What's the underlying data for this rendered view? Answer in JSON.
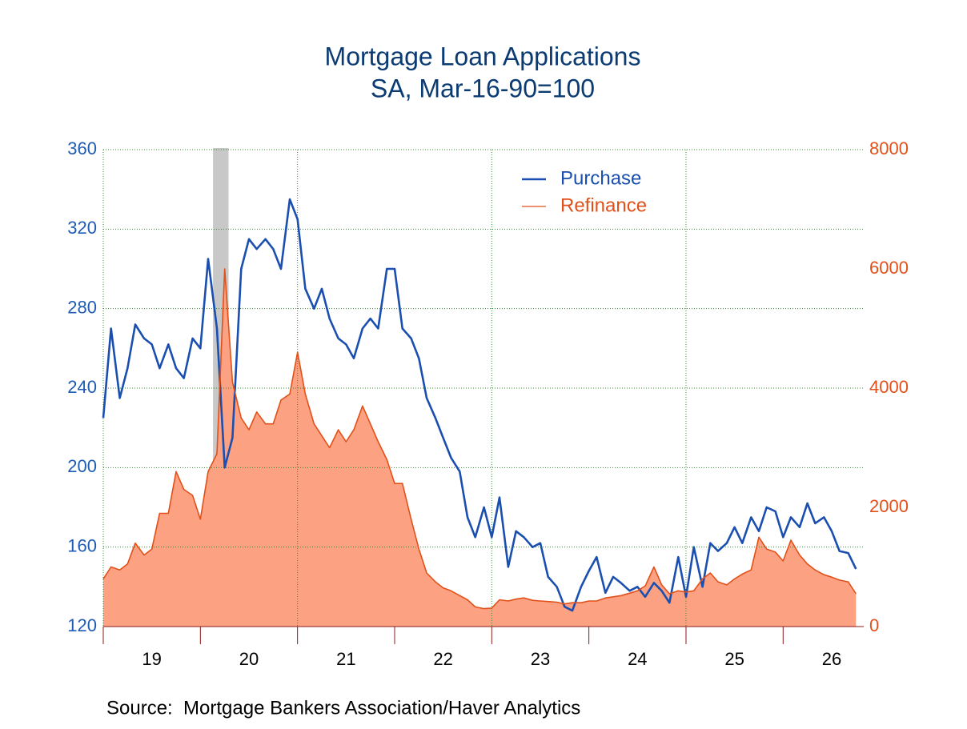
{
  "chart_data": {
    "type": "line",
    "title": "Mortgage Loan Applications",
    "subtitle": "SA, Mar-16-90=100",
    "source": "Source:  Mortgage Bankers Association/Haver Analytics",
    "legend": "top",
    "xlim": [
      2019,
      2026.83
    ],
    "xticks": [
      {
        "value": 2019.5,
        "label": "19"
      },
      {
        "value": 2020.5,
        "label": "20"
      },
      {
        "value": 2021.5,
        "label": "21"
      },
      {
        "value": 2022.5,
        "label": "22"
      },
      {
        "value": 2023.5,
        "label": "23"
      },
      {
        "value": 2024.5,
        "label": "24"
      },
      {
        "value": 2025.5,
        "label": "25"
      },
      {
        "value": 2026.5,
        "label": "26"
      }
    ],
    "xtick_marks": [
      2019,
      2020,
      2021,
      2022,
      2023,
      2024,
      2025,
      2026
    ],
    "xgrid": [
      2021,
      2023,
      2025
    ],
    "ylim": [
      120,
      360
    ],
    "yticks": [
      120,
      160,
      200,
      240,
      280,
      320,
      360
    ],
    "y2lim": [
      0,
      8000
    ],
    "y2ticks": [
      0,
      2000,
      4000,
      6000,
      8000
    ],
    "grid": true,
    "shaded_ranges": [
      {
        "start": 2020.13,
        "end": 2020.29,
        "color": "#c8c8c8"
      }
    ],
    "x": [
      2019.0,
      2019.08,
      2019.17,
      2019.25,
      2019.33,
      2019.42,
      2019.5,
      2019.58,
      2019.67,
      2019.75,
      2019.83,
      2019.92,
      2020.0,
      2020.08,
      2020.17,
      2020.25,
      2020.33,
      2020.42,
      2020.5,
      2020.58,
      2020.67,
      2020.75,
      2020.83,
      2020.92,
      2021.0,
      2021.08,
      2021.17,
      2021.25,
      2021.33,
      2021.42,
      2021.5,
      2021.58,
      2021.67,
      2021.75,
      2021.83,
      2021.92,
      2022.0,
      2022.08,
      2022.17,
      2022.25,
      2022.33,
      2022.42,
      2022.5,
      2022.58,
      2022.67,
      2022.75,
      2022.83,
      2022.92,
      2023.0,
      2023.08,
      2023.17,
      2023.25,
      2023.33,
      2023.42,
      2023.5,
      2023.58,
      2023.67,
      2023.75,
      2023.83,
      2023.92,
      2024.0,
      2024.08,
      2024.17,
      2024.25,
      2024.33,
      2024.42,
      2024.5,
      2024.58,
      2024.67,
      2024.75,
      2024.83,
      2024.92,
      2025.0,
      2025.08,
      2025.17,
      2025.25,
      2025.33,
      2025.42,
      2025.5,
      2025.58,
      2025.67,
      2025.75,
      2025.83,
      2025.92,
      2026.0,
      2026.08,
      2026.17,
      2026.25,
      2026.33,
      2026.42,
      2026.5,
      2026.58,
      2026.67,
      2026.75
    ],
    "series": [
      {
        "name": "Purchase",
        "color": "#1a4fb0",
        "axis": "y",
        "values": [
          225,
          270,
          235,
          250,
          272,
          265,
          262,
          250,
          262,
          250,
          245,
          265,
          260,
          305,
          270,
          200,
          215,
          300,
          315,
          310,
          315,
          310,
          300,
          335,
          325,
          290,
          280,
          290,
          275,
          265,
          262,
          255,
          270,
          275,
          270,
          300,
          300,
          270,
          265,
          255,
          235,
          225,
          215,
          205,
          198,
          175,
          165,
          180,
          165,
          185,
          150,
          168,
          165,
          160,
          162,
          145,
          140,
          130,
          128,
          140,
          148,
          155,
          137,
          145,
          142,
          138,
          140,
          135,
          142,
          138,
          132,
          155,
          135,
          160,
          140,
          162,
          158,
          162,
          170,
          162,
          175,
          168,
          180,
          178,
          165,
          175,
          170,
          182,
          172,
          175,
          168,
          158,
          157,
          149
        ]
      },
      {
        "name": "Refinance",
        "color": "#e2501a",
        "fill": "#fca282",
        "axis": "y2",
        "values": [
          800,
          1000,
          950,
          1050,
          1400,
          1200,
          1300,
          1900,
          1900,
          2600,
          2300,
          2200,
          1800,
          2600,
          2900,
          6000,
          4100,
          3500,
          3300,
          3600,
          3400,
          3400,
          3800,
          3900,
          4600,
          3900,
          3400,
          3200,
          3000,
          3300,
          3100,
          3300,
          3700,
          3400,
          3100,
          2800,
          2400,
          2400,
          1800,
          1300,
          900,
          750,
          650,
          600,
          520,
          450,
          330,
          300,
          310,
          450,
          430,
          460,
          480,
          440,
          430,
          420,
          410,
          380,
          400,
          400,
          430,
          430,
          480,
          500,
          520,
          560,
          600,
          680,
          1000,
          700,
          550,
          600,
          580,
          600,
          800,
          900,
          750,
          700,
          800,
          880,
          950,
          1500,
          1300,
          1250,
          1100,
          1450,
          1200,
          1050,
          950,
          870,
          830,
          780,
          750,
          550
        ]
      }
    ]
  }
}
